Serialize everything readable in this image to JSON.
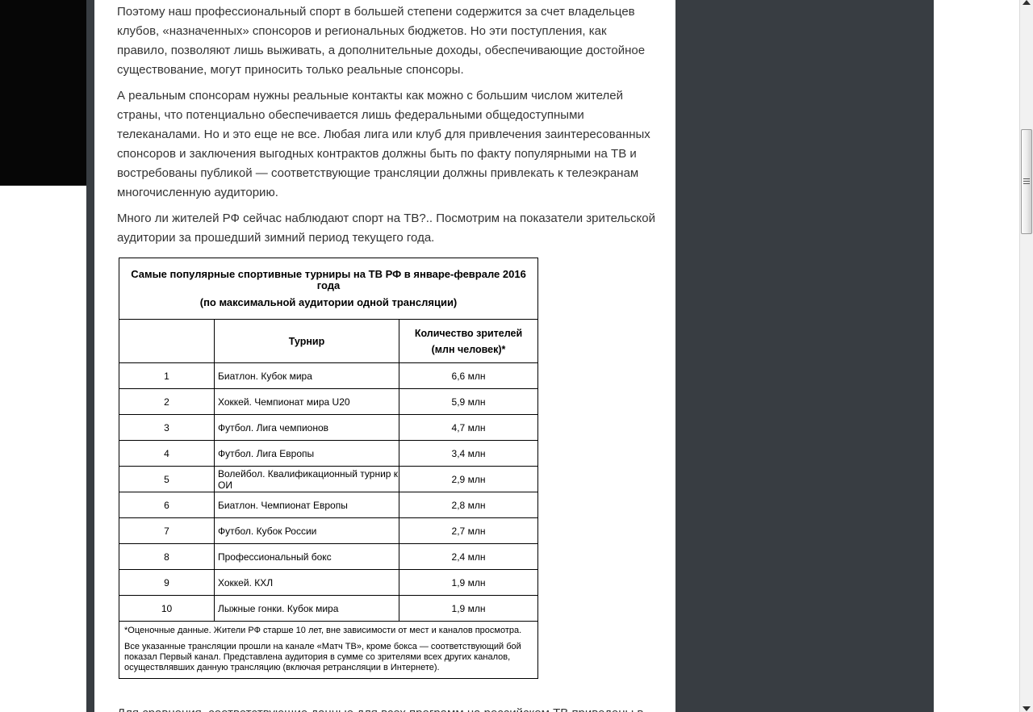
{
  "page": {
    "background_color": "#ffffff",
    "shell_color": "#383d42",
    "black_panel_color": "#060606",
    "scrollbar_track_color": "#f1f1f1",
    "scrollbar_thumb_border": "#9a9a9a"
  },
  "article": {
    "paragraphs": [
      "Поэтому наш профессиональный спорт в большей степени содержится за счет владельцев клубов, «назначенных» спонсоров и региональных бюджетов. Но эти поступления, как правило, позволяют лишь выживать, а дополнительные доходы, обеспечивающие достойное существование, могут приносить только реальные спонсоры.",
      "А реальным спонсорам нужны реальные контакты как можно с большим числом жителей страны, что потенциально обеспечивается лишь федеральными общедоступными телеканалами. Но и это еще не все. Любая лига или клуб для привлечения заинтересованных спонсоров и заключения выгодных контрактов должны быть по факту популярными на ТВ и востребованы публикой — соответствующие трансляции должны привлекать к телеэкранам многочисленную аудиторию.",
      "Много ли жителей РФ сейчас наблюдают спорт на ТВ?.. Посмотрим на показатели зрительской аудитории за прошедший зимний период текущего года.",
      "Для сравнения, соответствующие данные для всех программ на российском ТВ приведены в следующей таблице."
    ]
  },
  "table": {
    "title_lines": [
      "Самые популярные спортивные турниры на ТВ РФ в январе-феврале 2016 года",
      "(по максимальной аудитории одной трансляции)"
    ],
    "headers": {
      "rank": "",
      "tournament": "Турнир",
      "viewers_lines": [
        "Количество зрителей",
        "(млн человек)*"
      ]
    },
    "rows": [
      {
        "rank": "1",
        "tournament": "Биатлон. Кубок мира",
        "viewers": "6,6 млн"
      },
      {
        "rank": "2",
        "tournament": "Хоккей. Чемпионат мира U20",
        "viewers": "5,9 млн"
      },
      {
        "rank": "3",
        "tournament": "Футбол. Лига чемпионов",
        "viewers": "4,7 млн"
      },
      {
        "rank": "4",
        "tournament": "Футбол. Лига Европы",
        "viewers": "3,4 млн"
      },
      {
        "rank": "5",
        "tournament": "Волейбол. Квалификационный турнир к ОИ",
        "viewers": "2,9 млн"
      },
      {
        "rank": "6",
        "tournament": "Биатлон. Чемпионат Европы",
        "viewers": "2,8 млн"
      },
      {
        "rank": "7",
        "tournament": "Футбол. Кубок России",
        "viewers": "2,7 млн"
      },
      {
        "rank": "8",
        "tournament": "Профессиональный бокс",
        "viewers": "2,4 млн"
      },
      {
        "rank": "9",
        "tournament": "Хоккей. КХЛ",
        "viewers": "1,9 млн"
      },
      {
        "rank": "10",
        "tournament": "Лыжные гонки. Кубок мира",
        "viewers": "1,9 млн"
      }
    ],
    "footnotes": [
      "*Оценочные данные. Жители РФ старше 10 лет, вне зависимости от мест и каналов просмотра.",
      "Все указанные трансляции прошли на канале «Матч ТВ», кроме бокса — соответствующий бой показал Первый канал. Представлена аудитория в сумме со зрителями всех других каналов, осуществлявших данную трансляцию (включая ретрансляции в Интернете)."
    ]
  },
  "scrollbar": {
    "up_icon": "up-arrow-icon",
    "down_icon": "down-arrow-icon",
    "grip_icon": "scrollbar-grip-icon"
  }
}
